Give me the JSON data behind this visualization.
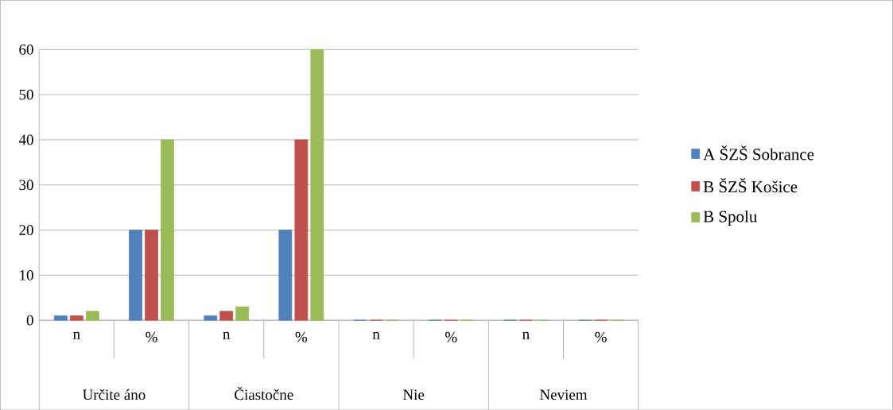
{
  "chart_data": {
    "type": "bar",
    "categories": [
      "n",
      "%",
      "n",
      "%",
      "n",
      "%",
      "n",
      "%"
    ],
    "series": [
      {
        "name": "A ŠZŠ Sobrance",
        "color": "#4f81bd",
        "values": [
          1,
          20,
          1,
          20,
          0,
          0,
          0,
          0
        ]
      },
      {
        "name": "B ŠZŠ Košice",
        "color": "#c0504d",
        "values": [
          1,
          20,
          2,
          40,
          0,
          0,
          0,
          0
        ]
      },
      {
        "name": "B Spolu",
        "color": "#9bbb59",
        "values": [
          2,
          40,
          3,
          60,
          0,
          0,
          0,
          0
        ]
      }
    ],
    "annotations": [
      "Určite áno",
      "Čiastočne",
      "Nie",
      "Neviem"
    ],
    "ylim": [
      0,
      60
    ],
    "yticks": [
      0,
      10,
      20,
      30,
      40,
      50,
      60
    ],
    "grid": "y",
    "legend": "right"
  }
}
